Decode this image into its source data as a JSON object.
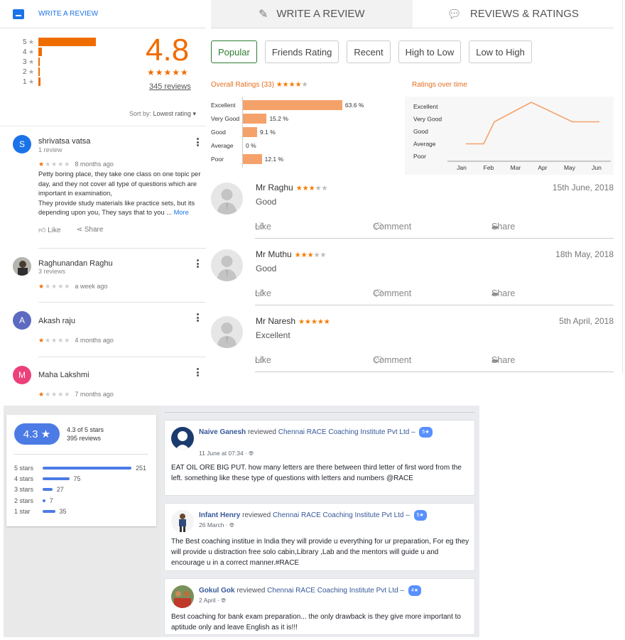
{
  "google": {
    "write_review": "WRITE A REVIEW",
    "histogram": [
      {
        "label": "5",
        "fraction": 0.9
      },
      {
        "label": "4",
        "fraction": 0.05
      },
      {
        "label": "3",
        "fraction": 0.01
      },
      {
        "label": "2",
        "fraction": 0.01
      },
      {
        "label": "1",
        "fraction": 0.03
      }
    ],
    "score": "4.8",
    "stars": "★★★★★",
    "review_count": "345 reviews",
    "sort_by_label": "Sort by:",
    "sort_by_value": "Lowest rating ▾",
    "reviews": [
      {
        "avatar_letter": "S",
        "avatar_color": "#1a73e8",
        "name": "shrivatsa vatsa",
        "sub": "1 review",
        "stars_on": "★",
        "stars_off": "★★★★",
        "time": "8 months ago",
        "text": "Petty boring place, they take one class on one topic per day, and they not cover all type of questions which are important in examination,\nThey provide study materials like practice sets, but its depending upon you, They says that to you ...",
        "more": "More",
        "like": "Like",
        "share": "Share"
      },
      {
        "avatar_letter": "",
        "avatar_color": "#9e9e9e",
        "name": "Raghunandan Raghu",
        "sub": "3 reviews",
        "stars_on": "★",
        "stars_off": "★★★★",
        "time": "a week ago"
      },
      {
        "avatar_letter": "A",
        "avatar_color": "#5c6bc0",
        "name": "Akash raju",
        "sub": "",
        "stars_on": "★",
        "stars_off": "★★★★",
        "time": "4 months ago"
      },
      {
        "avatar_letter": "M",
        "avatar_color": "#ec407a",
        "name": "Maha Lakshmi",
        "sub": "",
        "stars_on": "★",
        "stars_off": "★★★★",
        "time": "7 months ago"
      }
    ]
  },
  "middle": {
    "tab_write": "WRITE A REVIEW",
    "tab_reviews": "REVIEWS & RATINGS",
    "filters": [
      "Popular",
      "Friends Rating",
      "Recent",
      "High to Low",
      "Low to High"
    ],
    "overall_title": "Overall Ratings (33)",
    "overall_stars_on": "★★★★",
    "overall_stars_off": "★",
    "over_time_title": "Ratings over time",
    "reviews": [
      {
        "name": "Mr Raghu",
        "stars_on": "★★★",
        "stars_off": "★★",
        "date": "15th June, 2018",
        "text": "Good"
      },
      {
        "name": "Mr Muthu",
        "stars_on": "★★★",
        "stars_off": "★★",
        "date": "18th May, 2018",
        "text": "Good"
      },
      {
        "name": "Mr Naresh",
        "stars_on": "★★★★★",
        "stars_off": "",
        "date": "5th April, 2018",
        "text": "Excellent"
      }
    ],
    "actions": {
      "like": "Like",
      "comment": "Comment",
      "share": "Share"
    }
  },
  "chart_data": [
    {
      "type": "bar",
      "title": "Overall Ratings (33)",
      "categories": [
        "Excellent",
        "Very Good",
        "Good",
        "Average",
        "Poor"
      ],
      "values": [
        63.6,
        15.2,
        9.1,
        0,
        12.1
      ],
      "value_labels": [
        "63.6 %",
        "15.2 %",
        "9.1 %",
        "0 %",
        "12.1 %"
      ]
    },
    {
      "type": "line",
      "title": "Ratings over time",
      "x": [
        "Jan",
        "Feb",
        "Mar",
        "Apr",
        "May",
        "Jun"
      ],
      "y_categories": [
        "Excellent",
        "Very Good",
        "Good",
        "Average",
        "Poor"
      ],
      "values": [
        "Average",
        "Very Good",
        "Excellent",
        "Very Good",
        "Very Good",
        "Very Good"
      ]
    }
  ],
  "summary": {
    "score": "4.3 ★",
    "line1": "4.3 of 5 stars",
    "line2": "395 reviews",
    "rows": [
      {
        "label": "5 stars",
        "count": "251",
        "fraction": 1.0
      },
      {
        "label": "4 stars",
        "count": "75",
        "fraction": 0.3
      },
      {
        "label": "3 stars",
        "count": "27",
        "fraction": 0.11
      },
      {
        "label": "2 stars",
        "count": "7",
        "fraction": 0.03
      },
      {
        "label": "1 star",
        "count": "35",
        "fraction": 0.14
      }
    ]
  },
  "facebook": [
    {
      "name": "Naive Ganesh",
      "verb": "reviewed",
      "page": "Chennai RACE Coaching Institute Pvt Ltd –",
      "badge": "5★",
      "time": "11 June at 07:34 ·",
      "text": "EAT OIL ORE BIG PUT. how many letters are there between third letter of first word from the left. something like these type of questions with letters and numbers @RACE"
    },
    {
      "name": "Infant Henry",
      "verb": "reviewed",
      "page": "Chennai RACE Coaching Institute Pvt Ltd –",
      "badge": "5★",
      "time": "26 March ·",
      "text": "The Best coaching institue in India they will provide u everything for ur preparation, For eg they will provide u distraction free solo cabin,Library ,Lab and the mentors will guide u and encourage u in a correct manner.#RACE"
    },
    {
      "name": "Gokul Gok",
      "verb": "reviewed",
      "page": "Chennai RACE Coaching Institute Pvt Ltd –",
      "badge": "4★",
      "time": "2 April ·",
      "text": "Best coaching for bank exam preparation... the only drawback is they give more important to aptitude only and leave English as it is!!!"
    }
  ]
}
